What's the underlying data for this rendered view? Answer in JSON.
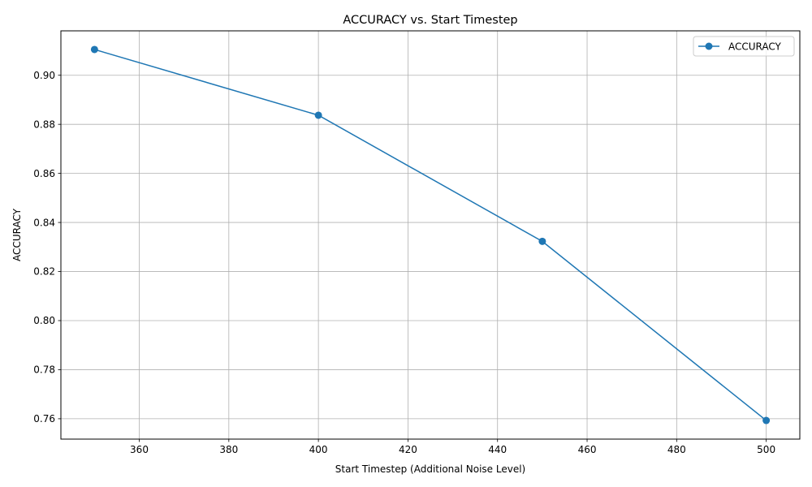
{
  "chart_data": {
    "type": "line",
    "title": "ACCURACY vs. Start Timestep",
    "xlabel": "Start Timestep (Additional Noise Level)",
    "ylabel": "ACCURACY",
    "x": [
      350,
      400,
      450,
      500
    ],
    "series": [
      {
        "name": "ACCURACY",
        "values": [
          0.9105,
          0.8837,
          0.8323,
          0.7593
        ],
        "color": "#1f77b4",
        "marker": "circle"
      }
    ],
    "xlim": [
      342.5,
      507.5
    ],
    "ylim": [
      0.7517,
      0.9181
    ],
    "xticks": [
      "360",
      "380",
      "400",
      "420",
      "440",
      "460",
      "480",
      "500"
    ],
    "yticks": [
      "0.76",
      "0.78",
      "0.80",
      "0.82",
      "0.84",
      "0.86",
      "0.88",
      "0.90"
    ],
    "grid": true,
    "legend": "upper right"
  }
}
